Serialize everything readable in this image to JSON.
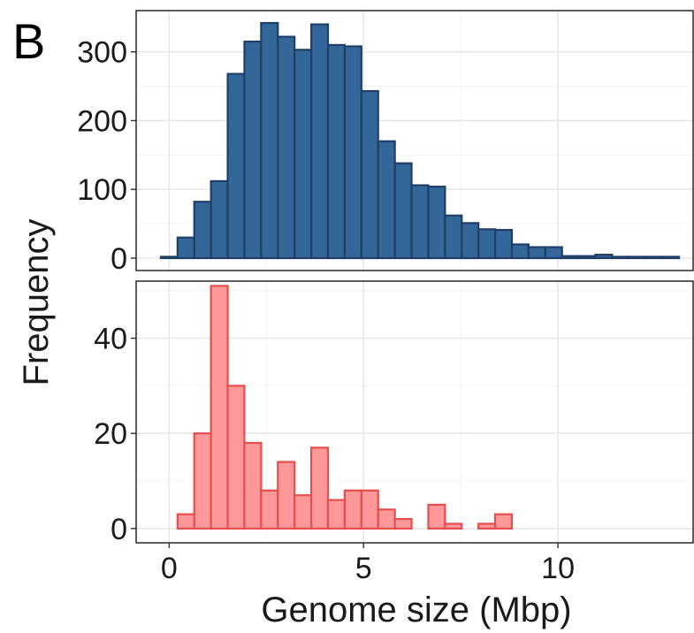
{
  "panel_label": "B",
  "chart_data": [
    {
      "type": "bar",
      "subtype": "histogram",
      "panel": "top",
      "fill": "#336699",
      "stroke": "#203f66",
      "bin_width": 0.43,
      "bin_centers": [
        0.0,
        0.43,
        0.86,
        1.29,
        1.72,
        2.15,
        2.58,
        3.01,
        3.44,
        3.87,
        4.3,
        4.73,
        5.16,
        5.59,
        6.02,
        6.45,
        6.88,
        7.31,
        7.74,
        8.17,
        8.6,
        9.03,
        9.46,
        9.89,
        10.32,
        10.75,
        11.18,
        11.61,
        12.04,
        12.47,
        12.9
      ],
      "values": [
        2,
        30,
        82,
        112,
        268,
        315,
        342,
        322,
        303,
        340,
        310,
        308,
        243,
        170,
        138,
        106,
        104,
        62,
        51,
        42,
        41,
        20,
        16,
        16,
        3,
        3,
        5,
        2,
        2,
        2,
        2
      ],
      "xlim": [
        -0.85,
        13.5
      ],
      "ylim": [
        -18,
        360
      ],
      "yticks": [
        0,
        100,
        200,
        300
      ],
      "ytick_labels": [
        "0",
        "100",
        "200",
        "300"
      ]
    },
    {
      "type": "bar",
      "subtype": "histogram",
      "panel": "bottom",
      "fill": "#ff9999",
      "stroke": "#e64d4d",
      "bin_width": 0.43,
      "bin_centers": [
        0.43,
        0.86,
        1.29,
        1.72,
        2.15,
        2.58,
        3.01,
        3.44,
        3.87,
        4.3,
        4.73,
        5.16,
        5.59,
        6.02,
        6.45,
        6.88,
        7.31,
        7.74,
        8.17,
        8.6,
        9.03
      ],
      "values": [
        3,
        20,
        51,
        30,
        18,
        8,
        14,
        7,
        17,
        6,
        8,
        8,
        4,
        2,
        0,
        5,
        1,
        0,
        1,
        3,
        0
      ],
      "xlim": [
        -0.85,
        13.5
      ],
      "ylim": [
        -3,
        52
      ],
      "yticks": [
        0,
        20,
        40
      ],
      "ytick_labels": [
        "0",
        "20",
        "40"
      ]
    }
  ],
  "x_axis": {
    "label": "Genome size (Mbp)",
    "ticks": [
      0,
      5,
      10
    ],
    "tick_labels": [
      "0",
      "5",
      "10"
    ]
  },
  "y_axis": {
    "label": "Frequency"
  }
}
